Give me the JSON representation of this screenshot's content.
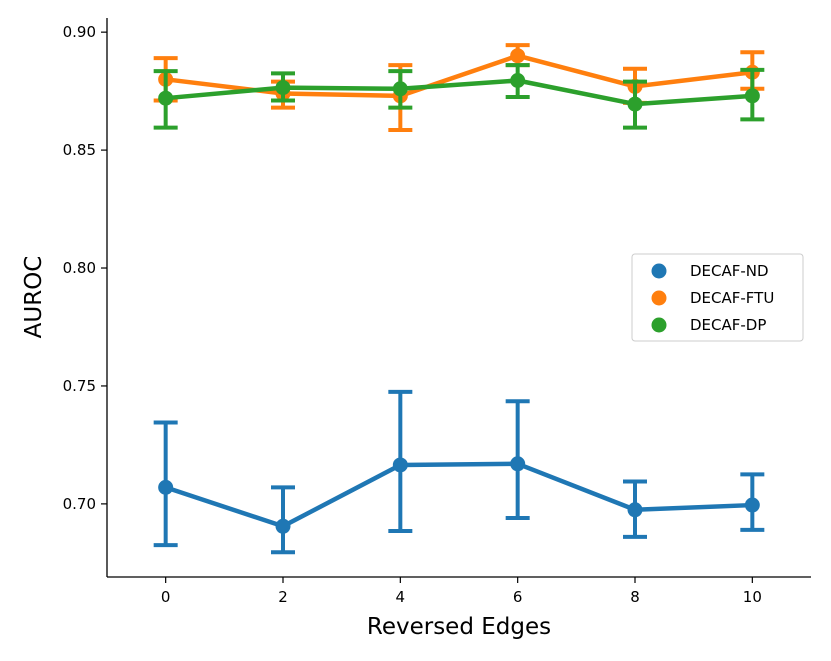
{
  "chart_data": {
    "type": "line",
    "title": "",
    "xlabel": "Reversed Edges",
    "ylabel": "AUROC",
    "x": [
      0,
      2,
      4,
      6,
      8,
      10
    ],
    "xlim": [
      -1,
      11
    ],
    "ylim": [
      0.669,
      0.906
    ],
    "xticks": [
      "0",
      "2",
      "4",
      "6",
      "8",
      "10"
    ],
    "yticks": [
      "0.70",
      "0.75",
      "0.80",
      "0.85",
      "0.90"
    ],
    "ytick_values": [
      0.7,
      0.75,
      0.8,
      0.85,
      0.9
    ],
    "grid": false,
    "legend_position": "center-right",
    "series": [
      {
        "name": "DECAF-ND",
        "color": "#1f77b4",
        "values": [
          0.707,
          0.6905,
          0.7165,
          0.717,
          0.6975,
          0.6995
        ],
        "error_low": [
          0.6825,
          0.6795,
          0.6885,
          0.694,
          0.686,
          0.689
        ],
        "error_high": [
          0.7345,
          0.707,
          0.7475,
          0.7435,
          0.7095,
          0.7125
        ]
      },
      {
        "name": "DECAF-FTU",
        "color": "#ff7f0e",
        "values": [
          0.88,
          0.874,
          0.873,
          0.89,
          0.877,
          0.883
        ],
        "error_low": [
          0.871,
          0.868,
          0.8585,
          0.886,
          0.87,
          0.876
        ],
        "error_high": [
          0.889,
          0.879,
          0.886,
          0.8945,
          0.8845,
          0.8915
        ]
      },
      {
        "name": "DECAF-DP",
        "color": "#2ca02c",
        "values": [
          0.872,
          0.8765,
          0.876,
          0.8795,
          0.8695,
          0.873
        ],
        "error_low": [
          0.8595,
          0.871,
          0.868,
          0.8725,
          0.8595,
          0.863
        ],
        "error_high": [
          0.8835,
          0.8825,
          0.8835,
          0.886,
          0.879,
          0.884
        ]
      }
    ]
  }
}
